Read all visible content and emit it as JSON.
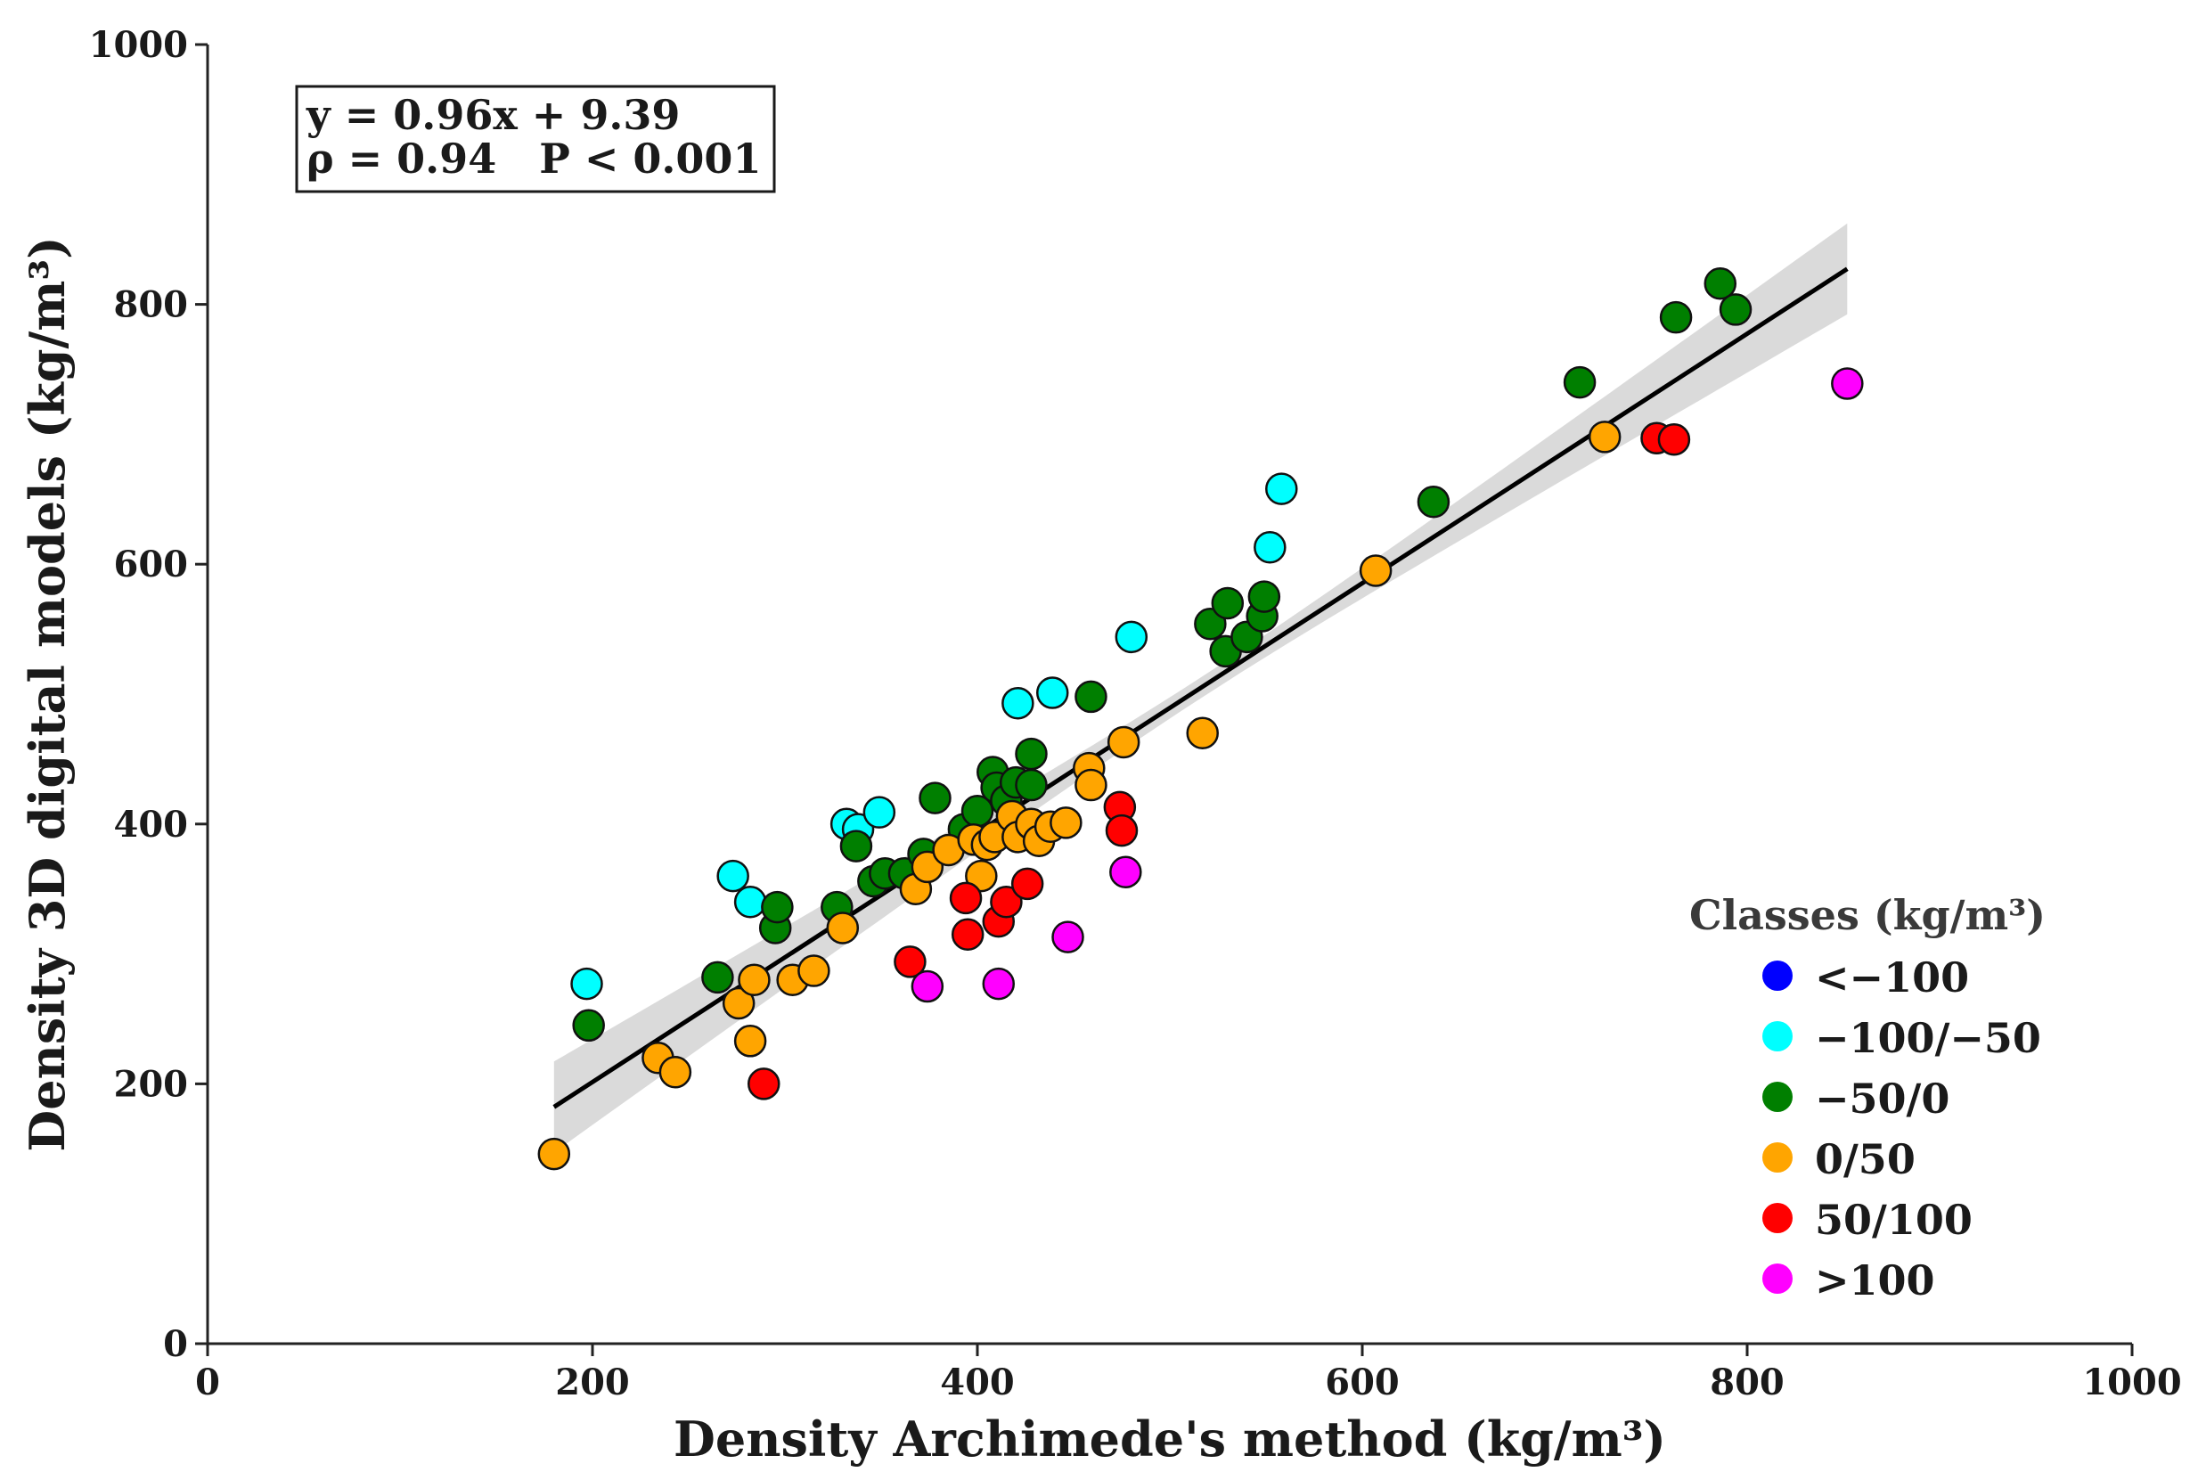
{
  "chart_data": {
    "type": "scatter",
    "xlabel": "Density Archimede's method (kg/m³)",
    "ylabel": "Density 3D digital models (kg/m³)",
    "xlim": [
      0,
      1000
    ],
    "ylim": [
      0,
      1000
    ],
    "xticks": [
      0,
      200,
      400,
      600,
      800,
      1000
    ],
    "yticks": [
      0,
      200,
      400,
      600,
      800,
      1000
    ],
    "annotation": {
      "line1": "y = 0.96x + 9.39",
      "line2": "ρ = 0.94   P < 0.001"
    },
    "regression": {
      "slope": 0.96,
      "intercept": 9.39,
      "x_range": [
        180,
        852
      ],
      "ci_halfwidth_at_ends": 35,
      "ci_halfwidth_at_center": 8
    },
    "legend": {
      "title": "Classes (kg/m³)",
      "position": "bottom-right"
    },
    "colors": {
      "<-100": "#0000ff",
      "-100/-50": "#00ffff",
      "-50/0": "#007f00",
      "0/50": "#ffa500",
      "50/100": "#ff0000",
      ">100": "#ff00ff",
      "regression_line": "#000000",
      "ci_band": "#d3d3d3"
    },
    "series": [
      {
        "name": "<−100",
        "key": "<-100",
        "points": []
      },
      {
        "name": "−100/−50",
        "key": "-100/-50",
        "points": [
          [
            197,
            277
          ],
          [
            273,
            360
          ],
          [
            282,
            340
          ],
          [
            332,
            400
          ],
          [
            338,
            396
          ],
          [
            349,
            409
          ],
          [
            421,
            493
          ],
          [
            439,
            501
          ],
          [
            480,
            544
          ],
          [
            552,
            613
          ],
          [
            558,
            658
          ]
        ]
      },
      {
        "name": "−50/0",
        "key": "-50/0",
        "points": [
          [
            198,
            245
          ],
          [
            265,
            282
          ],
          [
            295,
            320
          ],
          [
            296,
            336
          ],
          [
            327,
            336
          ],
          [
            337,
            383
          ],
          [
            346,
            356
          ],
          [
            352,
            362
          ],
          [
            362,
            362
          ],
          [
            372,
            377
          ],
          [
            378,
            420
          ],
          [
            393,
            396
          ],
          [
            400,
            410
          ],
          [
            408,
            440
          ],
          [
            410,
            428
          ],
          [
            415,
            418
          ],
          [
            420,
            432
          ],
          [
            428,
            430
          ],
          [
            428,
            454
          ],
          [
            459,
            498
          ],
          [
            521,
            554
          ],
          [
            529,
            533
          ],
          [
            530,
            570
          ],
          [
            540,
            544
          ],
          [
            548,
            560
          ],
          [
            549,
            575
          ],
          [
            637,
            648
          ],
          [
            713,
            740
          ],
          [
            763,
            790
          ],
          [
            786,
            816
          ],
          [
            794,
            796
          ]
        ]
      },
      {
        "name": "0/50",
        "key": "0/50",
        "points": [
          [
            180,
            146
          ],
          [
            234,
            220
          ],
          [
            243,
            209
          ],
          [
            276,
            262
          ],
          [
            282,
            233
          ],
          [
            284,
            280
          ],
          [
            304,
            280
          ],
          [
            315,
            287
          ],
          [
            330,
            320
          ],
          [
            368,
            350
          ],
          [
            374,
            367
          ],
          [
            385,
            380
          ],
          [
            398,
            388
          ],
          [
            402,
            360
          ],
          [
            405,
            384
          ],
          [
            409,
            390
          ],
          [
            418,
            406
          ],
          [
            421,
            390
          ],
          [
            428,
            400
          ],
          [
            432,
            387
          ],
          [
            438,
            398
          ],
          [
            446,
            401
          ],
          [
            458,
            443
          ],
          [
            459,
            430
          ],
          [
            476,
            463
          ],
          [
            517,
            470
          ],
          [
            607,
            595
          ],
          [
            726,
            698
          ]
        ]
      },
      {
        "name": "50/100",
        "key": "50/100",
        "points": [
          [
            289,
            200
          ],
          [
            365,
            294
          ],
          [
            394,
            343
          ],
          [
            395,
            315
          ],
          [
            411,
            325
          ],
          [
            415,
            340
          ],
          [
            426,
            354
          ],
          [
            474,
            413
          ],
          [
            475,
            395
          ],
          [
            753,
            697
          ],
          [
            762,
            696
          ]
        ]
      },
      {
        "name": ">100",
        "key": ">100",
        "points": [
          [
            374,
            275
          ],
          [
            411,
            277
          ],
          [
            447,
            313
          ],
          [
            477,
            363
          ],
          [
            852,
            739
          ]
        ]
      }
    ]
  }
}
